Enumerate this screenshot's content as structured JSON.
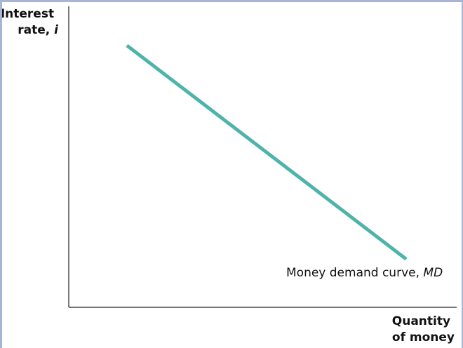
{
  "chart_data": {
    "type": "line",
    "ylabel": {
      "text": "Interest rate, ",
      "symbol": "i",
      "lines": [
        "Interest",
        "rate, "
      ]
    },
    "xlabel": {
      "lines": [
        "Quantity",
        "of money"
      ]
    },
    "series": [
      {
        "name": "Money demand curve, MD",
        "label_text": "Money demand curve, ",
        "label_symbol": "MD",
        "color": "#4fb3aa",
        "x": [
          0.15,
          0.87
        ],
        "y": [
          0.87,
          0.16
        ]
      }
    ],
    "xlim": [
      0,
      1
    ],
    "ylim": [
      0,
      1
    ],
    "grid": false,
    "legend": "none"
  }
}
